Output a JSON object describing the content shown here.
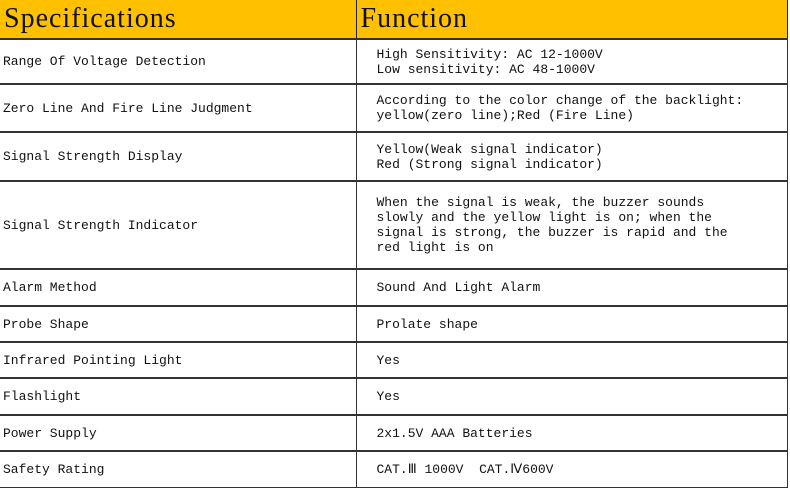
{
  "header": {
    "specifications": "Specifications",
    "function": "Function"
  },
  "header_color": "#FFC000",
  "rows": [
    {
      "spec": "Range Of Voltage Detection",
      "function": [
        "High Sensitivity: AC 12-1000V",
        "Low sensitivity: AC 48-1000V"
      ]
    },
    {
      "spec": "Zero Line And Fire Line Judgment",
      "function": [
        "According to the color change of the backlight:",
        "yellow(zero line);Red (Fire Line)"
      ]
    },
    {
      "spec": "Signal Strength Display",
      "function": [
        "Yellow(Weak signal indicator)",
        "Red (Strong signal indicator)"
      ]
    },
    {
      "spec": "Signal Strength Indicator",
      "function": [
        "When the signal is weak, the buzzer sounds",
        "slowly and the yellow light is on; when the",
        "signal is strong, the buzzer is rapid and the",
        "red light is on"
      ]
    },
    {
      "spec": "Alarm Method",
      "function": [
        "Sound And Light Alarm"
      ]
    },
    {
      "spec": "Probe Shape",
      "function": [
        "Prolate shape"
      ]
    },
    {
      "spec": "Infrared Pointing Light",
      "function": [
        "Yes"
      ]
    },
    {
      "spec": "Flashlight",
      "function": [
        "Yes"
      ]
    },
    {
      "spec": "Power Supply",
      "function": [
        "2x1.5V AAA Batteries"
      ]
    },
    {
      "spec": "Safety Rating",
      "function": [
        "CAT.Ⅲ 1000V  CAT.Ⅳ600V"
      ]
    }
  ]
}
